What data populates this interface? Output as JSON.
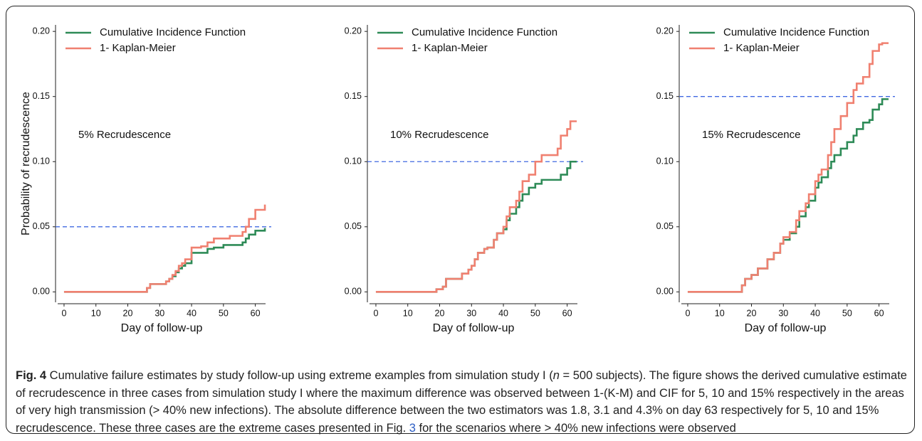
{
  "chart_data": [
    {
      "type": "line",
      "step": true,
      "x_label": "Day of follow-up",
      "y_label": "Probability of recrudescence",
      "annotation": "5% Recrudescence",
      "legend": "upper left",
      "reference_line": 0.05,
      "reference_color": "#4169e1",
      "xlim": [
        -2,
        65
      ],
      "ylim": [
        -0.008,
        0.205
      ],
      "xticks": [
        0,
        10,
        20,
        30,
        40,
        50,
        60
      ],
      "yticks": [
        {
          "value": 0,
          "label": "0.00"
        },
        {
          "value": 0.05,
          "label": "0.05"
        },
        {
          "value": 0.1,
          "label": "0.10"
        },
        {
          "value": 0.15,
          "label": "0.15"
        },
        {
          "value": 0.2,
          "label": "0.20"
        }
      ],
      "x": [
        0,
        25,
        26,
        27,
        30,
        32,
        33,
        34,
        35,
        36,
        37,
        38,
        40,
        43,
        45,
        47,
        50,
        52,
        55,
        56,
        57,
        58,
        60,
        63
      ],
      "series": [
        {
          "name": "Cumulative Incidence Function",
          "color": "#2e8b57",
          "values": [
            0,
            0,
            0.003,
            0.006,
            0.006,
            0.008,
            0.01,
            0.012,
            0.015,
            0.018,
            0.02,
            0.022,
            0.03,
            0.03,
            0.033,
            0.034,
            0.036,
            0.036,
            0.036,
            0.038,
            0.041,
            0.044,
            0.047,
            0.049
          ]
        },
        {
          "name": "1- Kaplan-Meier",
          "color": "#f08070",
          "values": [
            0,
            0,
            0.003,
            0.006,
            0.006,
            0.008,
            0.01,
            0.013,
            0.016,
            0.02,
            0.022,
            0.025,
            0.034,
            0.035,
            0.038,
            0.041,
            0.041,
            0.043,
            0.043,
            0.046,
            0.05,
            0.056,
            0.063,
            0.067
          ]
        }
      ]
    },
    {
      "type": "line",
      "step": true,
      "x_label": "Day of follow-up",
      "annotation": "10% Recrudescence",
      "legend": "upper left",
      "reference_line": 0.1,
      "reference_color": "#4169e1",
      "xlim": [
        -2,
        65
      ],
      "ylim": [
        -0.008,
        0.205
      ],
      "xticks": [
        0,
        10,
        20,
        30,
        40,
        50,
        60
      ],
      "yticks": [
        {
          "value": 0,
          "label": "0.00"
        },
        {
          "value": 0.05,
          "label": "0.05"
        },
        {
          "value": 0.1,
          "label": "0.10"
        },
        {
          "value": 0.15,
          "label": "0.15"
        },
        {
          "value": 0.2,
          "label": "0.20"
        }
      ],
      "x": [
        0,
        18,
        19,
        21,
        22,
        25,
        27,
        29,
        30,
        31,
        32,
        34,
        35,
        37,
        38,
        40,
        41,
        42,
        44,
        45,
        46,
        48,
        50,
        52,
        53,
        55,
        57,
        58,
        60,
        61,
        63
      ],
      "series": [
        {
          "name": "Cumulative Incidence Function",
          "color": "#2e8b57",
          "values": [
            0,
            0,
            0.002,
            0.004,
            0.01,
            0.01,
            0.014,
            0.017,
            0.02,
            0.025,
            0.03,
            0.033,
            0.034,
            0.04,
            0.045,
            0.048,
            0.055,
            0.06,
            0.065,
            0.07,
            0.075,
            0.08,
            0.083,
            0.086,
            0.086,
            0.086,
            0.086,
            0.09,
            0.095,
            0.1,
            0.1
          ]
        },
        {
          "name": "1- Kaplan-Meier",
          "color": "#f08070",
          "values": [
            0,
            0,
            0.002,
            0.004,
            0.01,
            0.01,
            0.014,
            0.017,
            0.02,
            0.025,
            0.03,
            0.033,
            0.034,
            0.04,
            0.045,
            0.05,
            0.058,
            0.065,
            0.07,
            0.077,
            0.085,
            0.09,
            0.1,
            0.105,
            0.105,
            0.105,
            0.11,
            0.12,
            0.125,
            0.131,
            0.131
          ]
        }
      ]
    },
    {
      "type": "line",
      "step": true,
      "x_label": "Day of follow-up",
      "annotation": "15% Recrudescence",
      "legend": "upper left",
      "reference_line": 0.15,
      "reference_color": "#4169e1",
      "xlim": [
        -2,
        65
      ],
      "ylim": [
        -0.008,
        0.205
      ],
      "xticks": [
        0,
        10,
        20,
        30,
        40,
        50,
        60
      ],
      "yticks": [
        {
          "value": 0,
          "label": "0.00"
        },
        {
          "value": 0.05,
          "label": "0.05"
        },
        {
          "value": 0.1,
          "label": "0.10"
        },
        {
          "value": 0.15,
          "label": "0.15"
        },
        {
          "value": 0.2,
          "label": "0.20"
        }
      ],
      "x": [
        0,
        16,
        17,
        18,
        20,
        22,
        25,
        27,
        29,
        30,
        32,
        34,
        35,
        37,
        38,
        40,
        41,
        42,
        44,
        45,
        46,
        48,
        50,
        52,
        53,
        55,
        57,
        58,
        60,
        61,
        63
      ],
      "series": [
        {
          "name": "Cumulative Incidence Function",
          "color": "#2e8b57",
          "values": [
            0,
            0,
            0.005,
            0.01,
            0.013,
            0.018,
            0.025,
            0.03,
            0.037,
            0.04,
            0.045,
            0.05,
            0.058,
            0.065,
            0.07,
            0.08,
            0.084,
            0.088,
            0.095,
            0.1,
            0.105,
            0.11,
            0.115,
            0.12,
            0.125,
            0.13,
            0.132,
            0.14,
            0.144,
            0.148,
            0.148
          ]
        },
        {
          "name": "1- Kaplan-Meier",
          "color": "#f08070",
          "values": [
            0,
            0,
            0.005,
            0.01,
            0.013,
            0.018,
            0.025,
            0.03,
            0.037,
            0.042,
            0.046,
            0.055,
            0.062,
            0.068,
            0.075,
            0.085,
            0.09,
            0.094,
            0.105,
            0.115,
            0.125,
            0.135,
            0.145,
            0.155,
            0.16,
            0.165,
            0.175,
            0.185,
            0.19,
            0.191,
            0.191
          ]
        }
      ]
    }
  ],
  "caption": {
    "label": "Fig. 4",
    "parts": [
      " Cumulative failure estimates by study follow-up using extreme examples from simulation study I (",
      "n",
      " = 500 subjects). The figure shows the derived cumulative estimate of recrudescence in three cases from simulation study I where the maximum difference was observed between 1-(K-M) and CIF for 5, 10 and 15% respectively in the areas of very high transmission (> 40% new infections). The absolute difference between the two estimators was 1.8, 3.1 and 4.3% on day 63 respectively for 5, 10 and 15% recrudescence. These three cases are the extreme cases presented in Fig. ",
      "3",
      " for the scenarios where > 40% new infections were observed"
    ]
  }
}
